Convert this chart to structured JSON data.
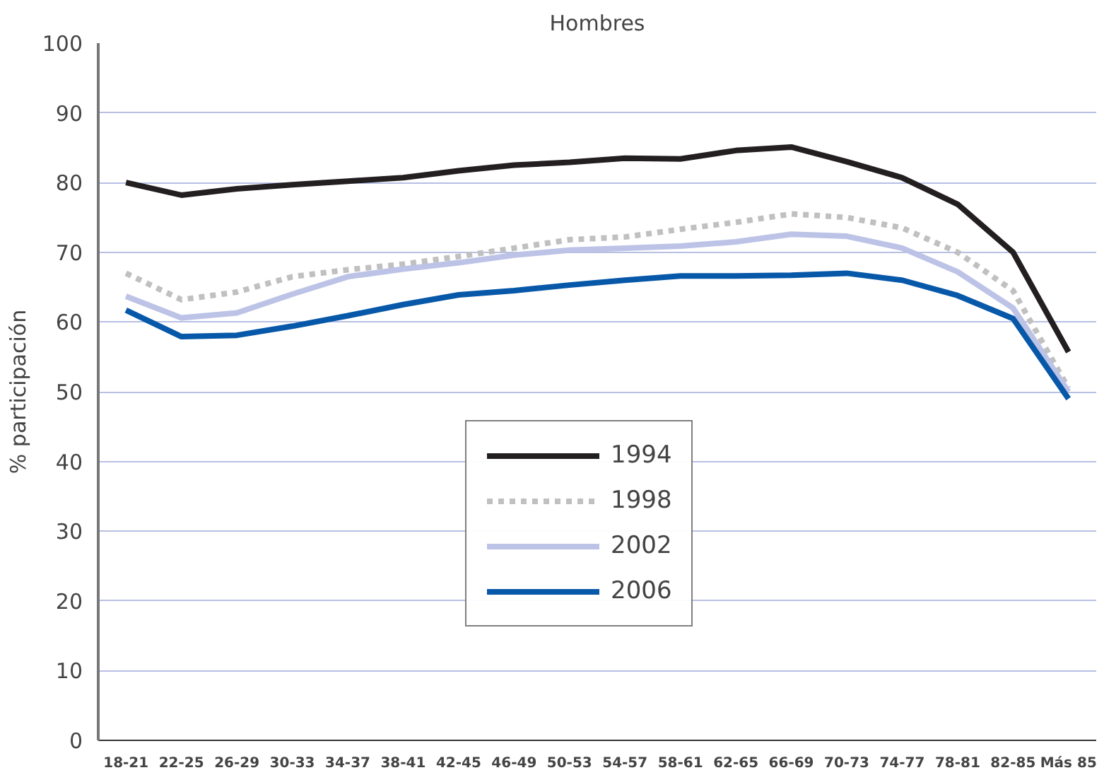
{
  "chart_data": {
    "type": "line",
    "title": "Hombres",
    "ylabel": "% participación",
    "categories": [
      "18-21",
      "22-25",
      "26-29",
      "30-33",
      "34-37",
      "38-41",
      "42-45",
      "46-49",
      "50-53",
      "54-57",
      "58-61",
      "62-65",
      "66-69",
      "70-73",
      "74-77",
      "78-81",
      "82-85",
      "Más 85"
    ],
    "series": [
      {
        "name": "1994",
        "color": "#231f20",
        "line_style": "solid",
        "values": [
          80,
          78.2,
          79.1,
          79.7,
          80.2,
          80.7,
          81.7,
          82.5,
          82.9,
          83.5,
          83.4,
          84.6,
          85.1,
          83,
          80.7,
          76.9,
          70,
          55.7
        ]
      },
      {
        "name": "1998",
        "color": "#c0c0c0",
        "line_style": "dashed",
        "values": [
          67,
          63.2,
          64.3,
          66.5,
          67.5,
          68.3,
          69.4,
          70.6,
          71.8,
          72.2,
          73.3,
          74.3,
          75.5,
          75,
          73.5,
          70,
          64.5,
          50.5
        ]
      },
      {
        "name": "2002",
        "color": "#bcc3e6",
        "line_style": "solid",
        "values": [
          63.7,
          60.6,
          61.3,
          64,
          66.5,
          67.6,
          68.5,
          69.6,
          70.3,
          70.6,
          70.9,
          71.5,
          72.6,
          72.3,
          70.6,
          67.2,
          62,
          50
        ]
      },
      {
        "name": "2006",
        "color": "#0758a8",
        "line_style": "solid",
        "values": [
          61.7,
          57.9,
          58.1,
          59.4,
          60.9,
          62.5,
          63.9,
          64.5,
          65.3,
          66,
          66.6,
          66.6,
          66.7,
          67,
          66,
          63.8,
          60.5,
          49
        ]
      }
    ],
    "ylim": [
      0,
      100
    ],
    "yticks": [
      0,
      10,
      20,
      30,
      40,
      50,
      60,
      70,
      80,
      90,
      100
    ],
    "grid": "y",
    "legend": "center",
    "marker": "none"
  }
}
